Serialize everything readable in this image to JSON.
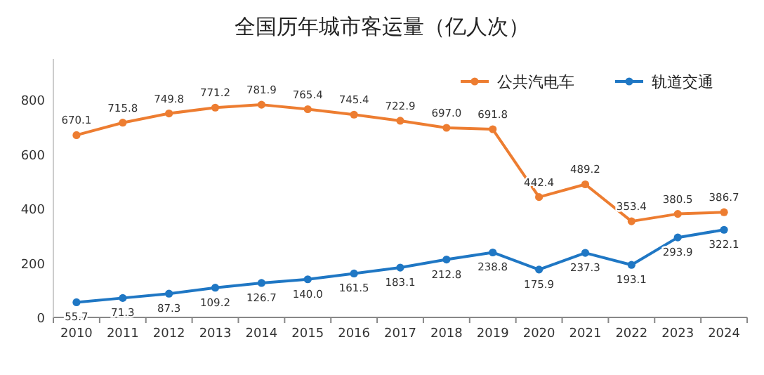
{
  "chart_data": {
    "type": "line",
    "title": "全国历年城市客运量（亿人次）",
    "categories": [
      "2010",
      "2011",
      "2012",
      "2013",
      "2014",
      "2015",
      "2016",
      "2017",
      "2018",
      "2019",
      "2020",
      "2021",
      "2022",
      "2023",
      "2024"
    ],
    "series": [
      {
        "name": "公共汽电车",
        "color": "#ed7d31",
        "values": [
          670.1,
          715.8,
          749.8,
          771.2,
          781.9,
          765.4,
          745.4,
          722.9,
          697.0,
          691.8,
          442.4,
          489.2,
          353.4,
          380.5,
          386.7
        ],
        "value_labels": [
          "670.1",
          "715.8",
          "749.8",
          "771.2",
          "781.9",
          "765.4",
          "745.4",
          "722.9",
          "697.0",
          "691.8",
          "442.4",
          "489.2",
          "353.4",
          "380.5",
          "386.7"
        ]
      },
      {
        "name": "轨道交通",
        "color": "#1f77c4",
        "values": [
          55.7,
          71.3,
          87.3,
          109.2,
          126.7,
          140.0,
          161.5,
          183.1,
          212.8,
          238.8,
          175.9,
          237.3,
          193.1,
          293.9,
          322.1
        ],
        "value_labels": [
          "55.7",
          "71.3",
          "87.3",
          "109.2",
          "126.7",
          "140.0",
          "161.5",
          "183.1",
          "212.8",
          "238.8",
          "175.9",
          "237.3",
          "193.1",
          "293.9",
          "322.1"
        ]
      }
    ],
    "ylim": [
      0,
      950
    ],
    "yticks": [
      0,
      200,
      400,
      600,
      800
    ],
    "grid": false,
    "legend": "top right",
    "marker": "circle",
    "line_style": "solid"
  }
}
